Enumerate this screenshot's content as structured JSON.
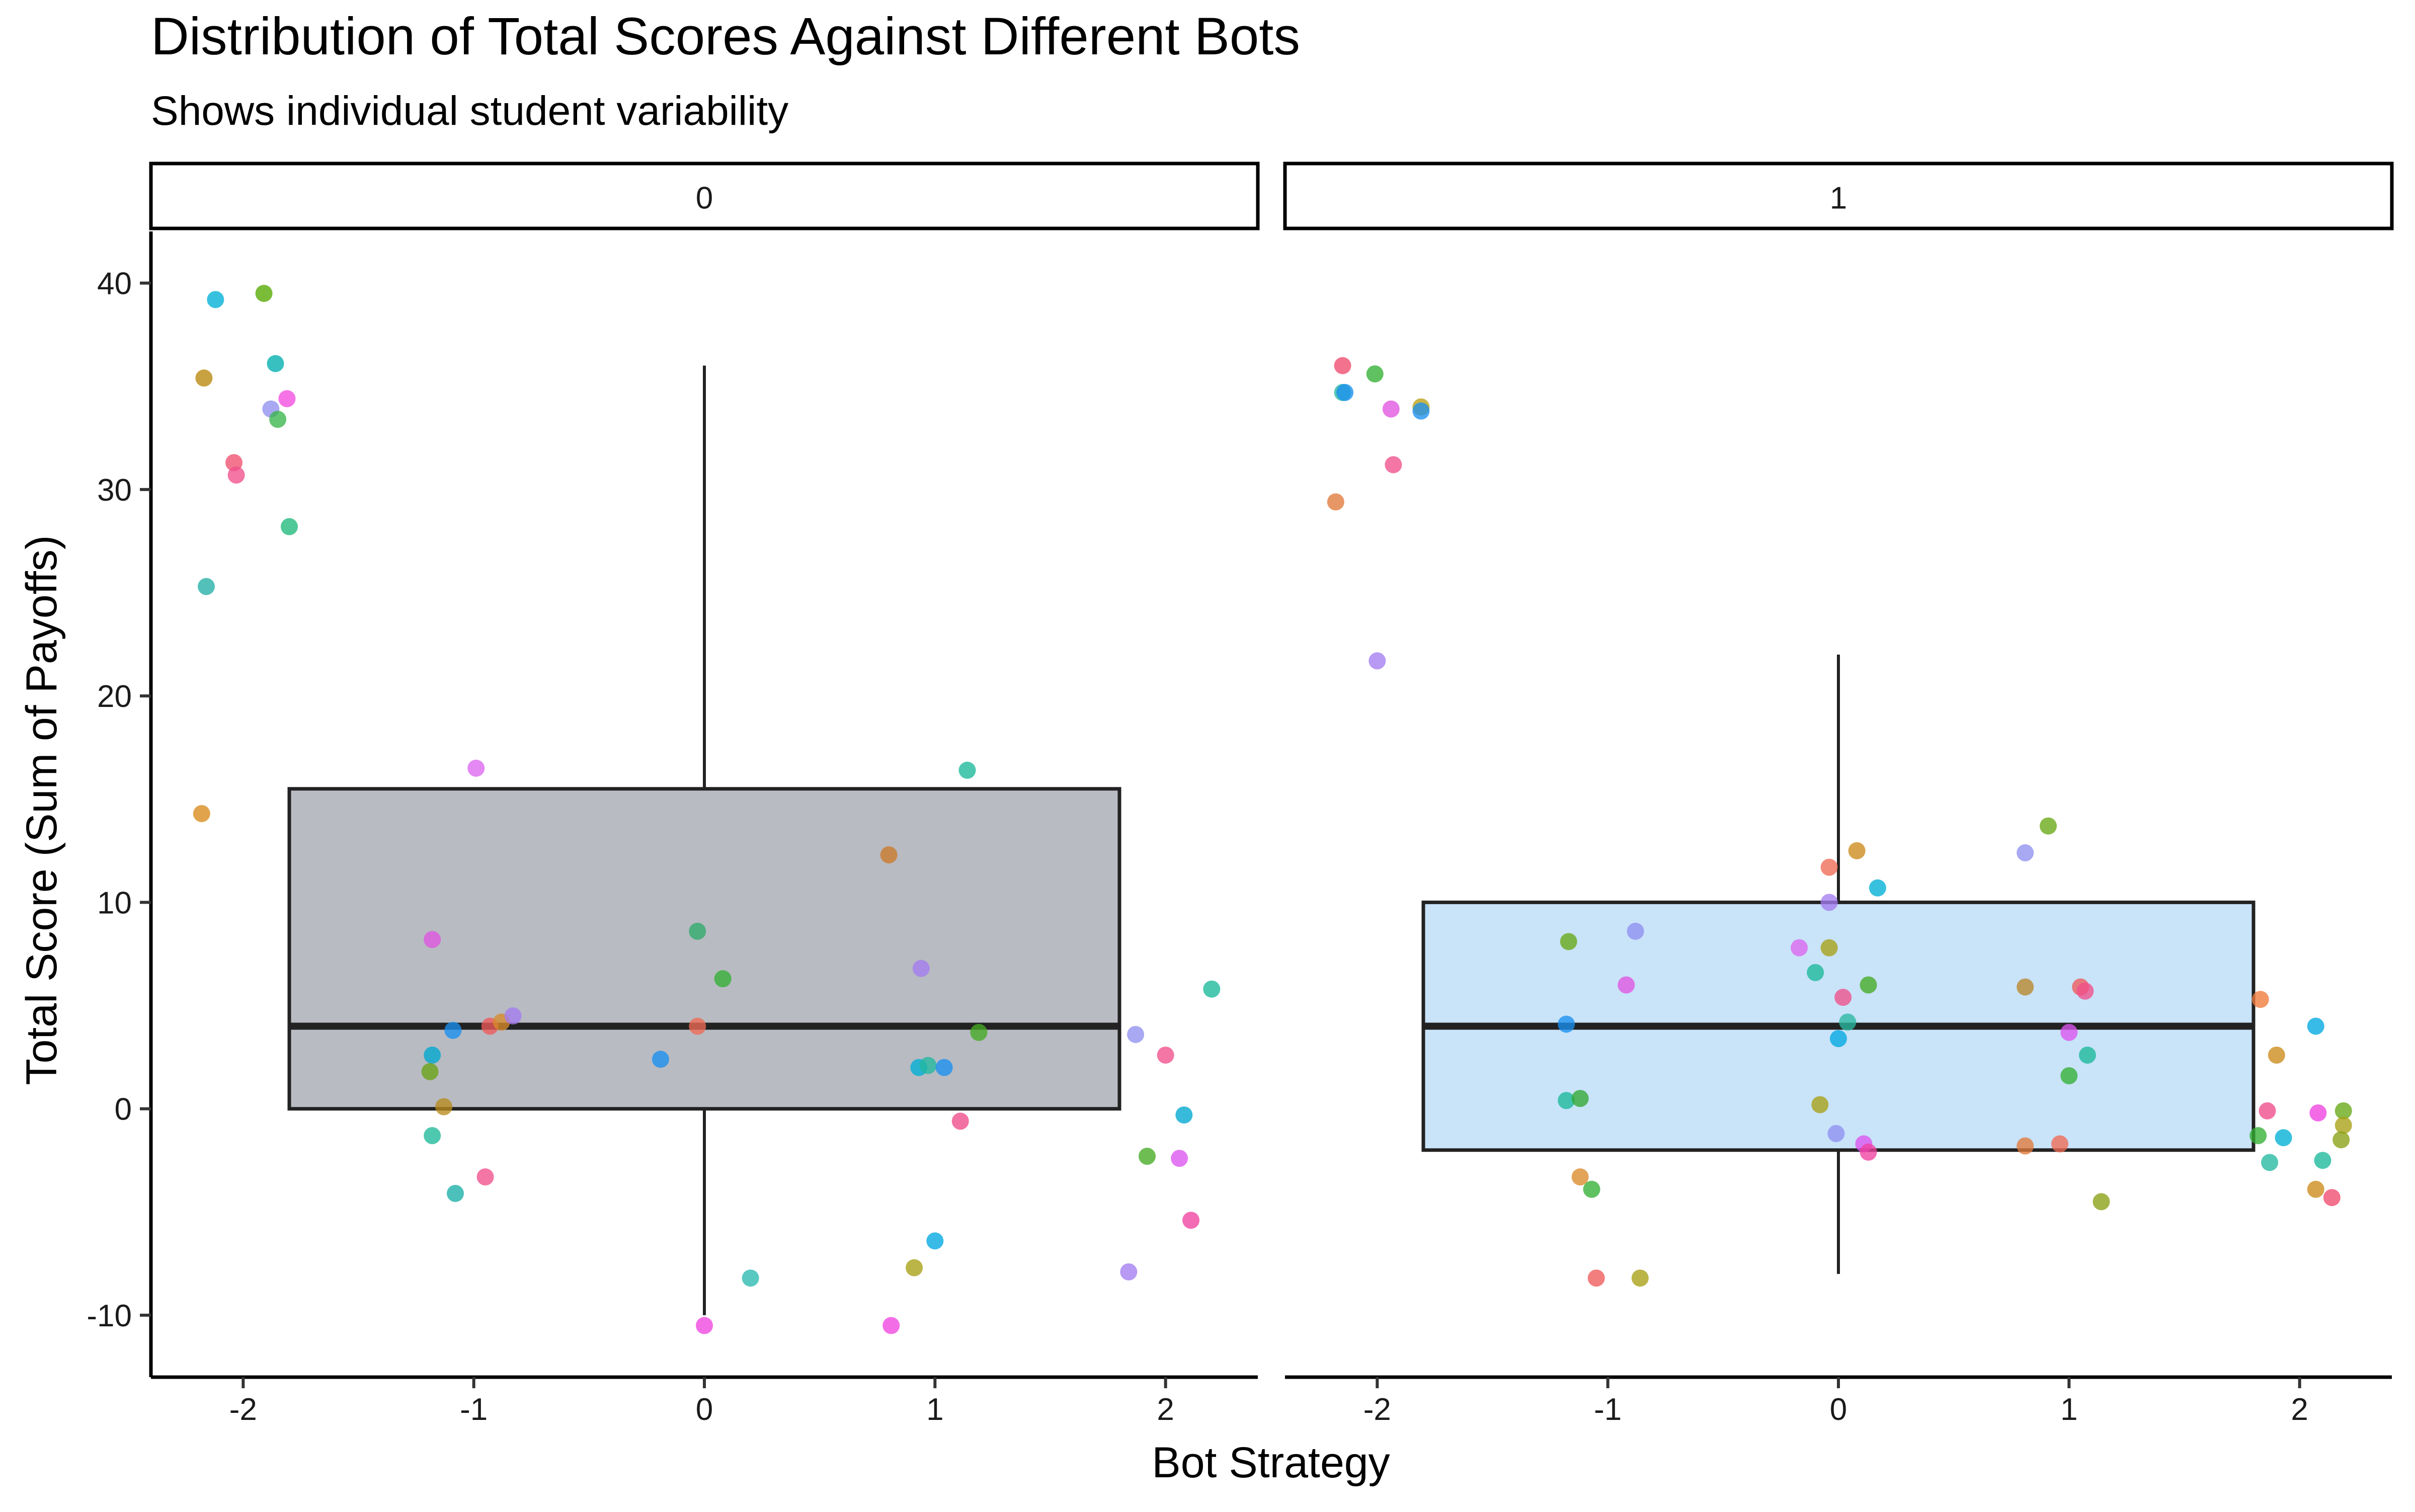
{
  "chart_data": {
    "type": "scatter",
    "title": "Distribution of Total Scores Against Different Bots",
    "subtitle": "Shows individual student variability",
    "xlabel": "Bot Strategy",
    "ylabel": "Total Score (Sum of Payoffs)",
    "xlim": [
      -2.4,
      2.4
    ],
    "ylim": [
      -13,
      42.5
    ],
    "x_ticks": [
      -2,
      -1,
      0,
      1,
      2
    ],
    "y_ticks": [
      -10,
      0,
      10,
      20,
      30,
      40
    ],
    "grid": false,
    "legend": "none",
    "facets": [
      {
        "label": "0",
        "box": {
          "x": 0,
          "q1": 0,
          "median": 4,
          "q3": 15.5,
          "whisker_low": -10,
          "whisker_high": 36,
          "half_width": 1.8,
          "fill": "#b8bbc2"
        },
        "points": [
          {
            "x": -2.12,
            "y": 39.2,
            "color": "#00b0d6"
          },
          {
            "x": -1.91,
            "y": 39.5,
            "color": "#55a800"
          },
          {
            "x": -2.17,
            "y": 35.4,
            "color": "#b8860b"
          },
          {
            "x": -1.86,
            "y": 36.1,
            "color": "#00aeb0"
          },
          {
            "x": -1.88,
            "y": 33.9,
            "color": "#8f8ff0"
          },
          {
            "x": -1.81,
            "y": 34.4,
            "color": "#f34ce0"
          },
          {
            "x": -1.85,
            "y": 33.4,
            "color": "#39b54a"
          },
          {
            "x": -2.04,
            "y": 31.3,
            "color": "#f0506e"
          },
          {
            "x": -2.03,
            "y": 30.7,
            "color": "#f0508a"
          },
          {
            "x": -1.8,
            "y": 28.2,
            "color": "#1fb87a"
          },
          {
            "x": -2.16,
            "y": 25.3,
            "color": "#22b0a6"
          },
          {
            "x": -2.18,
            "y": 14.3,
            "color": "#d98a1a"
          },
          {
            "x": -0.99,
            "y": 16.5,
            "color": "#dd66f0"
          },
          {
            "x": -1.18,
            "y": 8.2,
            "color": "#e055e0"
          },
          {
            "x": -1.09,
            "y": 3.8,
            "color": "#1a8ff0"
          },
          {
            "x": -1.18,
            "y": 2.6,
            "color": "#00a8d0"
          },
          {
            "x": -1.19,
            "y": 1.8,
            "color": "#6aa314"
          },
          {
            "x": -1.13,
            "y": 0.1,
            "color": "#b88a1c"
          },
          {
            "x": -0.93,
            "y": 4.0,
            "color": "#ef5a5a"
          },
          {
            "x": -0.88,
            "y": 4.2,
            "color": "#d98a2a"
          },
          {
            "x": -0.83,
            "y": 4.5,
            "color": "#a47cf0"
          },
          {
            "x": -1.18,
            "y": -1.3,
            "color": "#1eb89a"
          },
          {
            "x": -1.08,
            "y": -4.1,
            "color": "#1aaea8"
          },
          {
            "x": -0.95,
            "y": -3.3,
            "color": "#f0508a"
          },
          {
            "x": -0.03,
            "y": 8.6,
            "color": "#2faa6a"
          },
          {
            "x": 0.08,
            "y": 6.3,
            "color": "#33b033"
          },
          {
            "x": -0.03,
            "y": 4.0,
            "color": "#ef6a55"
          },
          {
            "x": -0.19,
            "y": 2.4,
            "color": "#1a8ff0"
          },
          {
            "x": 0.0,
            "y": -10.5,
            "color": "#f044e0"
          },
          {
            "x": 0.2,
            "y": -8.2,
            "color": "#2ab8b0"
          },
          {
            "x": 0.8,
            "y": 12.3,
            "color": "#cc7a2a"
          },
          {
            "x": 1.14,
            "y": 16.4,
            "color": "#1ab89a"
          },
          {
            "x": 0.94,
            "y": 6.8,
            "color": "#a47cf0"
          },
          {
            "x": 1.19,
            "y": 3.7,
            "color": "#44aa22"
          },
          {
            "x": 0.93,
            "y": 2.0,
            "color": "#00b0d6"
          },
          {
            "x": 0.97,
            "y": 2.1,
            "color": "#22b8a0"
          },
          {
            "x": 1.04,
            "y": 2.0,
            "color": "#1a8ff0"
          },
          {
            "x": 1.11,
            "y": -0.6,
            "color": "#f04a8a"
          },
          {
            "x": 1.0,
            "y": -6.4,
            "color": "#00a8e0"
          },
          {
            "x": 0.91,
            "y": -7.7,
            "color": "#a8a014"
          },
          {
            "x": 0.81,
            "y": -10.5,
            "color": "#f044e0"
          },
          {
            "x": 2.2,
            "y": 5.8,
            "color": "#1ab89a"
          },
          {
            "x": 1.87,
            "y": 3.6,
            "color": "#8f8ff0"
          },
          {
            "x": 2.0,
            "y": 2.6,
            "color": "#f0508a"
          },
          {
            "x": 2.08,
            "y": -0.3,
            "color": "#00a8d0"
          },
          {
            "x": 1.92,
            "y": -2.3,
            "color": "#44aa22"
          },
          {
            "x": 2.06,
            "y": -2.4,
            "color": "#dd55f0"
          },
          {
            "x": 2.11,
            "y": -5.4,
            "color": "#f040a0"
          },
          {
            "x": 1.84,
            "y": -7.9,
            "color": "#a47cf0"
          }
        ]
      },
      {
        "label": "1",
        "box": {
          "x": 0,
          "q1": -2,
          "median": 4,
          "q3": 10,
          "whisker_low": -8,
          "whisker_high": 22,
          "half_width": 1.8,
          "fill": "#c9e3f9"
        },
        "points": [
          {
            "x": -2.15,
            "y": 36.0,
            "color": "#f04a6e"
          },
          {
            "x": -2.01,
            "y": 35.6,
            "color": "#33b033"
          },
          {
            "x": -2.15,
            "y": 34.7,
            "color": "#2ab8a0"
          },
          {
            "x": -2.14,
            "y": 34.7,
            "color": "#1a8ff0"
          },
          {
            "x": -1.94,
            "y": 33.9,
            "color": "#e055e0"
          },
          {
            "x": -1.81,
            "y": 34.0,
            "color": "#b8a014"
          },
          {
            "x": -1.81,
            "y": 33.8,
            "color": "#1a8ff0"
          },
          {
            "x": -1.93,
            "y": 31.2,
            "color": "#f0508a"
          },
          {
            "x": -2.18,
            "y": 29.4,
            "color": "#e07a3a"
          },
          {
            "x": -2.0,
            "y": 21.7,
            "color": "#a47cf0"
          },
          {
            "x": -1.17,
            "y": 8.1,
            "color": "#66a814"
          },
          {
            "x": -0.88,
            "y": 8.6,
            "color": "#8f8ff0"
          },
          {
            "x": -0.92,
            "y": 6.0,
            "color": "#e055e0"
          },
          {
            "x": -1.18,
            "y": 4.1,
            "color": "#1a8ff0"
          },
          {
            "x": -1.18,
            "y": 0.4,
            "color": "#1ab89a"
          },
          {
            "x": -1.12,
            "y": 0.5,
            "color": "#33a833"
          },
          {
            "x": -1.12,
            "y": -3.3,
            "color": "#d98a2a"
          },
          {
            "x": -1.07,
            "y": -3.9,
            "color": "#33b033"
          },
          {
            "x": -1.05,
            "y": -8.2,
            "color": "#ef5a5a"
          },
          {
            "x": -0.86,
            "y": -8.2,
            "color": "#a8a014"
          },
          {
            "x": -0.04,
            "y": 11.7,
            "color": "#ef6a55"
          },
          {
            "x": 0.08,
            "y": 12.5,
            "color": "#cc8a1a"
          },
          {
            "x": 0.17,
            "y": 10.7,
            "color": "#00b0d6"
          },
          {
            "x": -0.04,
            "y": 10.0,
            "color": "#a47cf0"
          },
          {
            "x": -0.17,
            "y": 7.8,
            "color": "#dd66f0"
          },
          {
            "x": -0.04,
            "y": 7.8,
            "color": "#a8a014"
          },
          {
            "x": -0.1,
            "y": 6.6,
            "color": "#1ab89a"
          },
          {
            "x": 0.13,
            "y": 6.0,
            "color": "#44aa22"
          },
          {
            "x": 0.02,
            "y": 5.4,
            "color": "#f0508a"
          },
          {
            "x": 0.04,
            "y": 4.2,
            "color": "#2ab8a0"
          },
          {
            "x": 0.0,
            "y": 3.4,
            "color": "#00a8e0"
          },
          {
            "x": -0.08,
            "y": 0.2,
            "color": "#a8a014"
          },
          {
            "x": -0.01,
            "y": -1.2,
            "color": "#8f8ff0"
          },
          {
            "x": 0.11,
            "y": -1.7,
            "color": "#dd55f0"
          },
          {
            "x": 0.13,
            "y": -2.1,
            "color": "#f040a0"
          },
          {
            "x": 0.91,
            "y": 13.7,
            "color": "#66a814"
          },
          {
            "x": 0.81,
            "y": 12.4,
            "color": "#8f8ff0"
          },
          {
            "x": 0.81,
            "y": 5.9,
            "color": "#b8862a"
          },
          {
            "x": 1.05,
            "y": 5.9,
            "color": "#f05a5a"
          },
          {
            "x": 1.07,
            "y": 5.7,
            "color": "#f0508a"
          },
          {
            "x": 1.0,
            "y": 3.7,
            "color": "#dd55f0"
          },
          {
            "x": 1.08,
            "y": 2.6,
            "color": "#1ab89a"
          },
          {
            "x": 1.0,
            "y": 1.6,
            "color": "#33b033"
          },
          {
            "x": 0.81,
            "y": -1.8,
            "color": "#e07a3a"
          },
          {
            "x": 0.96,
            "y": -1.7,
            "color": "#ef6a55"
          },
          {
            "x": 1.14,
            "y": -4.5,
            "color": "#8aa014"
          },
          {
            "x": 1.83,
            "y": 5.3,
            "color": "#ef7a3a"
          },
          {
            "x": 2.07,
            "y": 4.0,
            "color": "#00a8e0"
          },
          {
            "x": 1.9,
            "y": 2.6,
            "color": "#cc8a1a"
          },
          {
            "x": 1.86,
            "y": -0.1,
            "color": "#f04a8a"
          },
          {
            "x": 2.08,
            "y": -0.2,
            "color": "#f040e0"
          },
          {
            "x": 2.19,
            "y": -0.1,
            "color": "#66a814"
          },
          {
            "x": 2.19,
            "y": -0.8,
            "color": "#a8a014"
          },
          {
            "x": 1.82,
            "y": -1.3,
            "color": "#33b033"
          },
          {
            "x": 1.93,
            "y": -1.4,
            "color": "#00b0d6"
          },
          {
            "x": 2.18,
            "y": -1.5,
            "color": "#8aa014"
          },
          {
            "x": 1.87,
            "y": -2.6,
            "color": "#22b8a0"
          },
          {
            "x": 2.1,
            "y": -2.5,
            "color": "#1ab89a"
          },
          {
            "x": 2.07,
            "y": -3.9,
            "color": "#cc8a1a"
          },
          {
            "x": 2.14,
            "y": -4.3,
            "color": "#f04a6e"
          }
        ]
      }
    ]
  }
}
